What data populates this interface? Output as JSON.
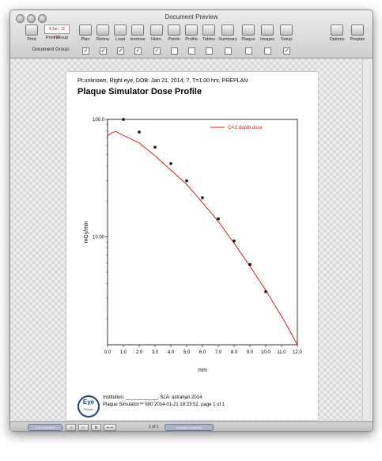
{
  "window": {
    "title": "Document Preview"
  },
  "toolbar": {
    "print": "Print",
    "print_group": "Print Group",
    "print_group_badge": "4-Jan, 12 pgs",
    "items": [
      "Plan",
      "Retina",
      "Load",
      "Isodose",
      "Histo.",
      "Points",
      "Profile",
      "Tables",
      "Summary",
      "Plaque",
      "Images",
      "Setup"
    ],
    "options": "Options",
    "preplan": "Preplan"
  },
  "document_group": {
    "label": "Document Group:",
    "checks": [
      true,
      true,
      true,
      true,
      true,
      false,
      false,
      false,
      false,
      false,
      false,
      true
    ]
  },
  "page": {
    "patient_info": "Pt:unknown, Right eye, DOB: Jan 21, 2014, ?, T=1.00 hrs, PREPLAN",
    "title": "Plaque Simulator Dose Profile",
    "institution": "Institution: ____________, SLA: astrahan.2014",
    "stamp": "Plaque Simulator™ 600 2014-01-21 18:23:52, page 1 of 1",
    "logo_text": "Eye",
    "logo_sub": "Physics"
  },
  "chart_data": {
    "type": "line",
    "xlabel": "mm",
    "ylabel": "mGy/min",
    "xlim": [
      0,
      12
    ],
    "ylim": [
      1.2,
      100
    ],
    "yscale": "log",
    "xticks": [
      "0.0",
      "1.0",
      "2.0",
      "3.0",
      "4.0",
      "5.0",
      "6.0",
      "7.0",
      "8.0",
      "9.0",
      "10.0",
      "11.0",
      "12.0"
    ],
    "yticks": [
      {
        "value": 100,
        "label": "100.0"
      },
      {
        "value": 10,
        "label": "10.00"
      }
    ],
    "legend_position": "top-right",
    "series": [
      {
        "name": "CAX depth dose",
        "kind": "line",
        "color": "#cc2222",
        "x": [
          0.0,
          0.2,
          0.5,
          1.0,
          1.5,
          2.0,
          3.0,
          4.0,
          5.0,
          6.0,
          7.0,
          8.0,
          9.0,
          10.0,
          10.5,
          11.0,
          11.5,
          12.0
        ],
        "y": [
          72,
          76,
          79,
          73,
          68,
          63,
          49,
          37,
          28,
          19.5,
          13.5,
          8.8,
          5.6,
          3.5,
          2.7,
          2.1,
          1.6,
          1.2
        ]
      },
      {
        "kind": "points",
        "color": "#000000",
        "x": [
          1.0,
          2.0,
          3.0,
          4.0,
          5.0,
          6.0,
          7.0,
          8.0,
          9.0,
          10.0
        ],
        "y": [
          100,
          78,
          58,
          42,
          30,
          21.5,
          14.2,
          9.2,
          5.8,
          3.4
        ]
      }
    ]
  },
  "statusbar": {
    "left_field": "1.00 816x615",
    "nav_buttons": [
      "◁",
      "▷",
      "⊟",
      "⇤⇥"
    ],
    "page_text": "1 of 1",
    "right_field": "Isodose: mGy/min"
  }
}
